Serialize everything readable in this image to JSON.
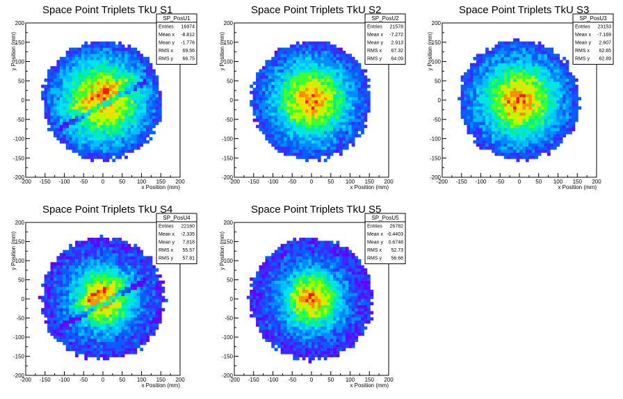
{
  "chart_data": [
    {
      "type": "heatmap",
      "title": "Space Point Triplets TkU S1",
      "xlabel": "x Position (mm)",
      "ylabel": "y Position (mm)",
      "xlim": [
        -200,
        200
      ],
      "ylim": [
        -200,
        200
      ],
      "xticks": [
        "-200",
        "-150",
        "-100",
        "-50",
        "0",
        "50",
        "100",
        "150",
        "200"
      ],
      "yticks": [
        "200",
        "150",
        "100",
        "50",
        "0",
        "-50",
        "-100",
        "-150",
        "-200"
      ],
      "stats": {
        "name": "SP_PosU1",
        "rows": [
          {
            "label": "Entries",
            "value": "16974"
          },
          {
            "label": "Mean x",
            "value": "-8.812"
          },
          {
            "label": "Mean y",
            "value": "-1.776"
          },
          {
            "label": "RMS x",
            "value": "69.56"
          },
          {
            "label": "RMS y",
            "value": "66.75"
          }
        ]
      },
      "distribution": {
        "radius_mm": 155,
        "core_width_mm": 55,
        "streak": true
      }
    },
    {
      "type": "heatmap",
      "title": "Space Point Triplets TkU S2",
      "xlabel": "x Position (mm)",
      "ylabel": "y Position (mm)",
      "xlim": [
        -200,
        200
      ],
      "ylim": [
        -200,
        200
      ],
      "xticks": [
        "-200",
        "-150",
        "-100",
        "-50",
        "0",
        "50",
        "100",
        "150",
        "200"
      ],
      "yticks": [
        "200",
        "150",
        "100",
        "50",
        "0",
        "-50",
        "-100",
        "-150",
        "-200"
      ],
      "stats": {
        "name": "SP_PosU2",
        "rows": [
          {
            "label": "Entries",
            "value": "21578"
          },
          {
            "label": "Mean x",
            "value": "-7.272"
          },
          {
            "label": "Mean y",
            "value": "2.913"
          },
          {
            "label": "RMS x",
            "value": "67.32"
          },
          {
            "label": "RMS y",
            "value": "64.09"
          }
        ]
      },
      "distribution": {
        "radius_mm": 155,
        "core_width_mm": 50,
        "streak": false
      }
    },
    {
      "type": "heatmap",
      "title": "Space Point Triplets TkU S3",
      "xlabel": "x Position (mm)",
      "ylabel": "y Position (mm)",
      "xlim": [
        -200,
        200
      ],
      "ylim": [
        -200,
        200
      ],
      "xticks": [
        "-200",
        "-150",
        "-100",
        "-50",
        "0",
        "50",
        "100",
        "150",
        "200"
      ],
      "yticks": [
        "200",
        "150",
        "100",
        "50",
        "0",
        "-50",
        "-100",
        "-150",
        "-200"
      ],
      "stats": {
        "name": "SP_PosU3",
        "rows": [
          {
            "label": "Entries",
            "value": "23153"
          },
          {
            "label": "Mean x",
            "value": "-7.169"
          },
          {
            "label": "Mean y",
            "value": "2.607"
          },
          {
            "label": "RMS x",
            "value": "62.65"
          },
          {
            "label": "RMS y",
            "value": "62.89"
          }
        ]
      },
      "distribution": {
        "radius_mm": 155,
        "core_width_mm": 52,
        "streak": false
      }
    },
    {
      "type": "heatmap",
      "title": "Space Point Triplets TkU S4",
      "xlabel": "x Position (mm)",
      "ylabel": "y Position (mm)",
      "xlim": [
        -200,
        200
      ],
      "ylim": [
        -200,
        200
      ],
      "xticks": [
        "-200",
        "-150",
        "-100",
        "-50",
        "0",
        "50",
        "100",
        "150",
        "200"
      ],
      "yticks": [
        "200",
        "150",
        "100",
        "50",
        "0",
        "-50",
        "-100",
        "-150",
        "-200"
      ],
      "stats": {
        "name": "SP_PosU4",
        "rows": [
          {
            "label": "Entries",
            "value": "22160"
          },
          {
            "label": "Mean x",
            "value": "-2.335"
          },
          {
            "label": "Mean y",
            "value": "7.818"
          },
          {
            "label": "RMS x",
            "value": "55.57"
          },
          {
            "label": "RMS y",
            "value": "57.81"
          }
        ]
      },
      "distribution": {
        "radius_mm": 160,
        "core_width_mm": 42,
        "streak": true
      }
    },
    {
      "type": "heatmap",
      "title": "Space Point Triplets TkU S5",
      "xlabel": "x Position (mm)",
      "ylabel": "y Position (mm)",
      "xlim": [
        -200,
        200
      ],
      "ylim": [
        -200,
        200
      ],
      "xticks": [
        "-200",
        "-150",
        "-100",
        "-50",
        "0",
        "50",
        "100",
        "150",
        "200"
      ],
      "yticks": [
        "200",
        "150",
        "100",
        "50",
        "0",
        "-50",
        "-100",
        "-150",
        "-200"
      ],
      "stats": {
        "name": "SP_PosU5",
        "rows": [
          {
            "label": "Entries",
            "value": "26782"
          },
          {
            "label": "Mean x",
            "value": "-0.4403"
          },
          {
            "label": "Mean y",
            "value": "0.6748"
          },
          {
            "label": "RMS x",
            "value": "52.73"
          },
          {
            "label": "RMS y",
            "value": "56.68"
          }
        ]
      },
      "distribution": {
        "radius_mm": 160,
        "core_width_mm": 40,
        "streak": false
      }
    }
  ],
  "colors": {
    "palette": [
      "#6400ff",
      "#3a2cff",
      "#0a5cff",
      "#008cff",
      "#00c0ff",
      "#00e6e6",
      "#00f090",
      "#40ff30",
      "#b0ff00",
      "#f0e000",
      "#ff9000",
      "#ff1a00"
    ],
    "frame": "#000000",
    "background": "#ffffff"
  }
}
